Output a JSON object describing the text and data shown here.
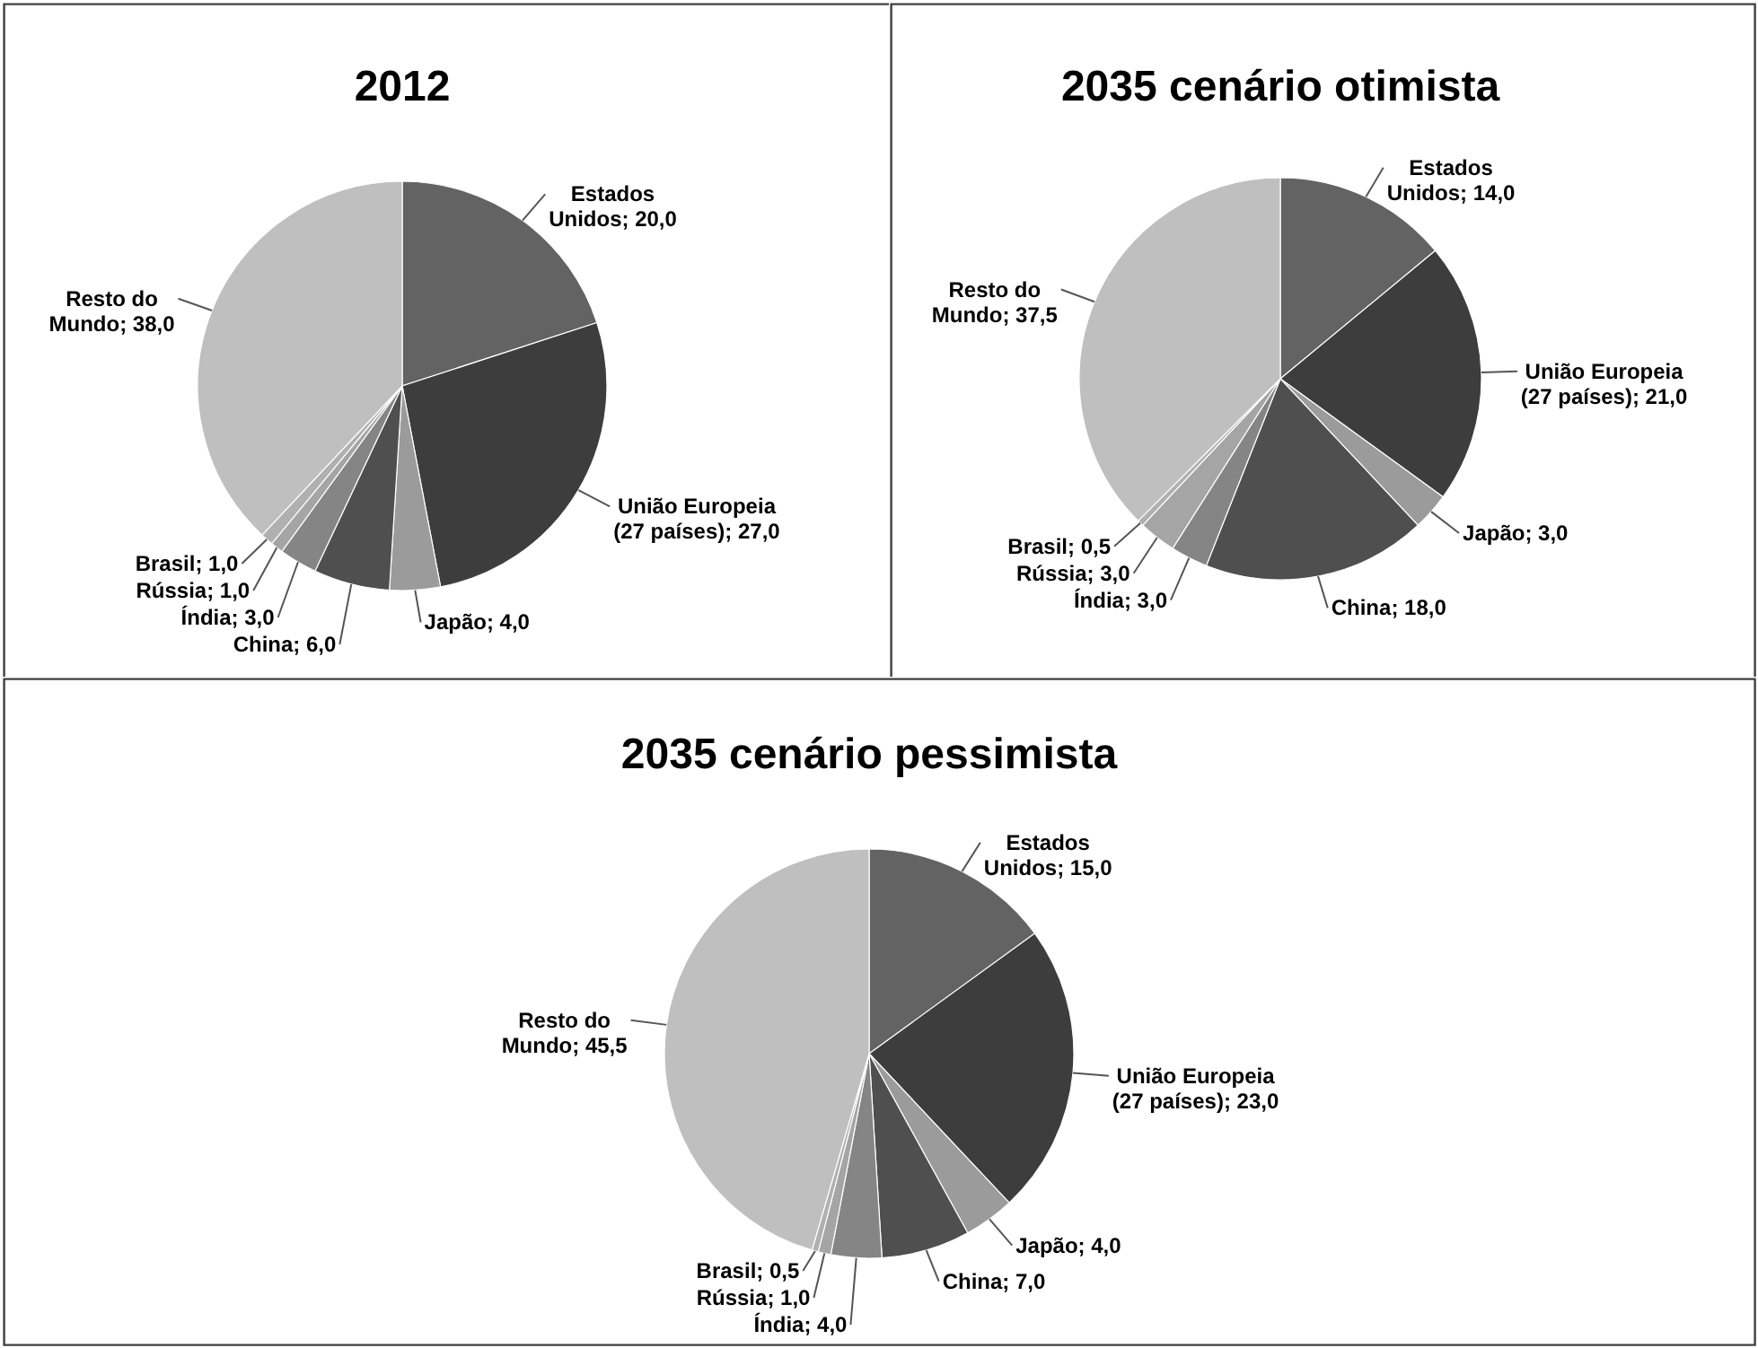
{
  "chart_data": [
    {
      "type": "pie",
      "title": "2012",
      "categories": [
        "Estados Unidos",
        "União Europeia (27 países)",
        "Japão",
        "China",
        "Índia",
        "Rússia",
        "Brasil",
        "Resto do Mundo"
      ],
      "values": [
        20,
        27,
        4,
        6,
        3,
        1,
        1,
        38
      ],
      "value_labels": [
        "20,0",
        "27,0",
        "4,0",
        "6,0",
        "3,0",
        "1,0",
        "1,0",
        "38,0"
      ],
      "colors": [
        "#636363",
        "#3d3d3d",
        "#9b9b9b",
        "#4f4f4f",
        "#858585",
        "#a5a5a5",
        "#b0b0b0",
        "#bfbfbf"
      ]
    },
    {
      "type": "pie",
      "title": "2035 cenário otimista",
      "categories": [
        "Estados Unidos",
        "União Europeia (27 países)",
        "Japão",
        "China",
        "Índia",
        "Rússia",
        "Brasil",
        "Resto do Mundo"
      ],
      "values": [
        14,
        21,
        3,
        18,
        3,
        3,
        0.5,
        37.5
      ],
      "value_labels": [
        "14,0",
        "21,0",
        "3,0",
        "18,0",
        "3,0",
        "3,0",
        "0,5",
        "37,5"
      ],
      "colors": [
        "#636363",
        "#3d3d3d",
        "#9b9b9b",
        "#4f4f4f",
        "#858585",
        "#a5a5a5",
        "#b0b0b0",
        "#bfbfbf"
      ]
    },
    {
      "type": "pie",
      "title": "2035 cenário pessimista",
      "categories": [
        "Estados Unidos",
        "União Europeia (27 países)",
        "Japão",
        "China",
        "Índia",
        "Rússia",
        "Brasil",
        "Resto do Mundo"
      ],
      "values": [
        15,
        23,
        4,
        7,
        4,
        1,
        0.5,
        45.5
      ],
      "value_labels": [
        "15,0",
        "23,0",
        "4,0",
        "7,0",
        "4,0",
        "1,0",
        "0,5",
        "45,5"
      ],
      "colors": [
        "#636363",
        "#3d3d3d",
        "#9b9b9b",
        "#4f4f4f",
        "#858585",
        "#a5a5a5",
        "#b0b0b0",
        "#bfbfbf"
      ]
    }
  ]
}
